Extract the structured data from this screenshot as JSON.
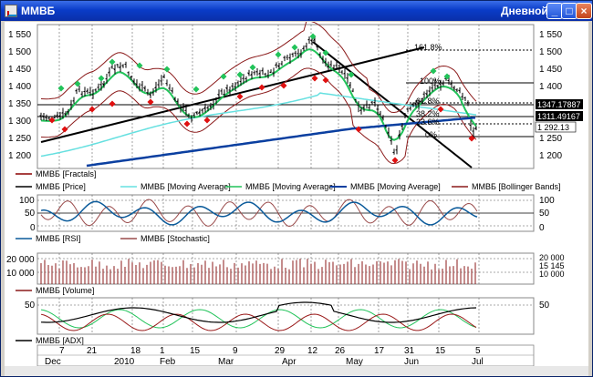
{
  "window": {
    "title": "ММВБ",
    "period": "Дневной",
    "buttons": {
      "minimize": "_",
      "maximize": "□",
      "close": "×"
    }
  },
  "price_panel": {
    "y_labels": [
      "1 550",
      "1 500",
      "1 450",
      "1 400",
      "1 350",
      "1 300",
      "1 250",
      "1 200"
    ],
    "price_tags": [
      "1347.17887",
      "1311.49167",
      "1 292.13"
    ],
    "fib_levels": [
      "161.8%",
      "100%",
      "61.8%",
      "38.2%",
      "23.6%",
      "0%"
    ],
    "legend": [
      {
        "name": "ММВБ [Fractals]",
        "color": "#8b0000"
      },
      {
        "name": "ММВБ [Price]",
        "color": "#000000"
      },
      {
        "name": "ММВБ [Moving Average]",
        "color": "#66e0e0"
      },
      {
        "name": "ММВБ [Moving Average]",
        "color": "#22c35a"
      },
      {
        "name": "ММВБ [Moving Average]",
        "color": "#0a3fa0"
      },
      {
        "name": "ММВБ [Bollinger Bands]",
        "color": "#8b1a1a"
      }
    ]
  },
  "oscillator_panel": {
    "y_labels": [
      "100",
      "50",
      "0"
    ],
    "right_labels": [
      "100",
      "50",
      "0"
    ],
    "legend": [
      {
        "name": "ММВБ [RSI]",
        "color": "#0a5a9a"
      },
      {
        "name": "ММВБ [Stochastic]",
        "color": "#9a4b4b"
      }
    ]
  },
  "volume_panel": {
    "y_labels": [
      "20 000",
      "10 000"
    ],
    "right_labels": [
      "20 000",
      "15 145",
      "10 000"
    ],
    "legend": [
      {
        "name": "ММВБ [Volume]",
        "color": "#8b1a1a"
      }
    ]
  },
  "adx_panel": {
    "y_labels": [
      "50"
    ],
    "right_labels": [
      "50"
    ],
    "legend": [
      {
        "name": "ММВБ [ADX]",
        "color": "#000000"
      }
    ]
  },
  "time_axis": {
    "day_labels": [
      "7",
      "21",
      "18",
      "1",
      "15",
      "9",
      "29",
      "12",
      "26",
      "17",
      "31",
      "15",
      "5"
    ],
    "month_labels": [
      "Dec",
      "2010",
      "Feb",
      "Mar",
      "Apr",
      "May",
      "Jun",
      "Jul"
    ]
  },
  "colors": {
    "price": "#000000",
    "ma_fast": "#66e0e0",
    "ma_mid": "#22c35a",
    "ma_slow": "#0a3fa0",
    "bollinger": "#8b1a1a",
    "fractal_up": "#22c35a",
    "fractal_down": "#e01010"
  }
}
